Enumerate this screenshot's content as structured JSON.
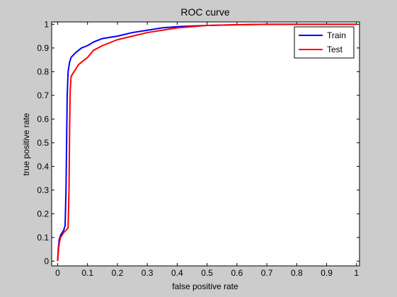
{
  "chart_data": {
    "type": "line",
    "title": "ROC curve",
    "xlabel": "false positive rate",
    "ylabel": "true positive rate",
    "xlim": [
      -0.02,
      1.01
    ],
    "ylim": [
      -0.02,
      1.01
    ],
    "xticks": [
      0,
      0.1,
      0.2,
      0.3,
      0.4,
      0.5,
      0.6,
      0.7,
      0.8,
      0.9,
      1
    ],
    "xtick_labels": [
      "0",
      "0.1",
      "0.2",
      "0.3",
      "0.4",
      "0.5",
      "0.6",
      "0.7",
      "0.8",
      "0.9",
      "1"
    ],
    "yticks": [
      0,
      0.1,
      0.2,
      0.3,
      0.4,
      0.5,
      0.6,
      0.7,
      0.8,
      0.9,
      1
    ],
    "ytick_labels": [
      "0",
      "0.1",
      "0.2",
      "0.3",
      "0.4",
      "0.5",
      "0.6",
      "0.7",
      "0.8",
      "0.9",
      "1"
    ],
    "grid": false,
    "legend_position": "top-right",
    "series": [
      {
        "name": "Train",
        "color": "#0000ff",
        "points": [
          [
            0,
            0
          ],
          [
            0.002,
            0.05
          ],
          [
            0.005,
            0.09
          ],
          [
            0.01,
            0.11
          ],
          [
            0.02,
            0.13
          ],
          [
            0.025,
            0.15
          ],
          [
            0.028,
            0.3
          ],
          [
            0.03,
            0.5
          ],
          [
            0.032,
            0.7
          ],
          [
            0.035,
            0.8
          ],
          [
            0.04,
            0.84
          ],
          [
            0.045,
            0.86
          ],
          [
            0.06,
            0.88
          ],
          [
            0.08,
            0.9
          ],
          [
            0.1,
            0.91
          ],
          [
            0.12,
            0.925
          ],
          [
            0.15,
            0.94
          ],
          [
            0.2,
            0.95
          ],
          [
            0.25,
            0.965
          ],
          [
            0.3,
            0.975
          ],
          [
            0.35,
            0.985
          ],
          [
            0.4,
            0.99
          ],
          [
            0.5,
            0.995
          ],
          [
            0.6,
            0.998
          ],
          [
            0.7,
            1
          ],
          [
            1,
            1
          ]
        ]
      },
      {
        "name": "Test",
        "color": "#ff0000",
        "points": [
          [
            0,
            0
          ],
          [
            0.003,
            0.05
          ],
          [
            0.006,
            0.08
          ],
          [
            0.01,
            0.1
          ],
          [
            0.02,
            0.12
          ],
          [
            0.035,
            0.14
          ],
          [
            0.038,
            0.3
          ],
          [
            0.04,
            0.55
          ],
          [
            0.042,
            0.72
          ],
          [
            0.045,
            0.78
          ],
          [
            0.055,
            0.8
          ],
          [
            0.07,
            0.83
          ],
          [
            0.09,
            0.85
          ],
          [
            0.1,
            0.86
          ],
          [
            0.12,
            0.89
          ],
          [
            0.15,
            0.91
          ],
          [
            0.2,
            0.935
          ],
          [
            0.25,
            0.95
          ],
          [
            0.3,
            0.965
          ],
          [
            0.35,
            0.975
          ],
          [
            0.4,
            0.985
          ],
          [
            0.5,
            0.995
          ],
          [
            0.6,
            0.998
          ],
          [
            0.7,
            1
          ],
          [
            1,
            1
          ]
        ]
      }
    ]
  }
}
